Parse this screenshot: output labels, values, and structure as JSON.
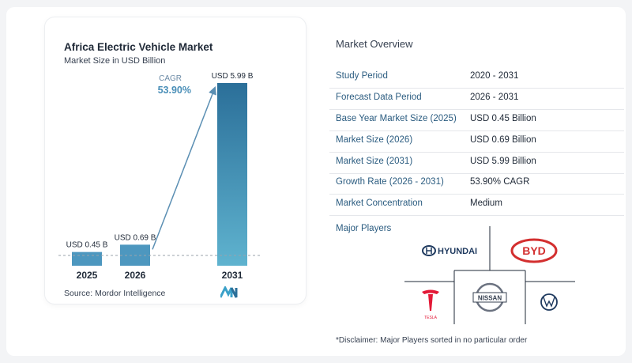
{
  "chart_data": {
    "type": "bar",
    "title": "Africa Electric Vehicle Market",
    "subtitle": "Market Size in USD Billion",
    "categories": [
      "2025",
      "2026",
      "2031"
    ],
    "values": [
      0.45,
      0.69,
      5.99
    ],
    "data_labels": [
      "USD 0.45 B",
      "USD 0.69 B",
      "USD 5.99 B"
    ],
    "cagr_label": "CAGR",
    "cagr_value": "53.90%",
    "ylim": [
      0,
      5.99
    ],
    "grid": false
  },
  "source": "Source:  Mordor Intelligence",
  "overview": {
    "title": "Market Overview",
    "rows": [
      {
        "label": "Study Period",
        "value": "2020 - 2031"
      },
      {
        "label": "Forecast Data Period",
        "value": "2026 - 2031"
      },
      {
        "label": "Base Year Market Size (2025)",
        "value": "USD 0.45 Billion"
      },
      {
        "label": "Market Size (2026)",
        "value": "USD 0.69 Billion"
      },
      {
        "label": "Market Size (2031)",
        "value": "USD 5.99 Billion"
      },
      {
        "label": "Growth Rate (2026 - 2031)",
        "value": "53.90% CAGR"
      },
      {
        "label": "Market Concentration",
        "value": "Medium"
      }
    ]
  },
  "players": {
    "title": "Major Players",
    "logos": [
      "HYUNDAI",
      "BYD",
      "TESLA",
      "NISSAN",
      "Volkswagen"
    ],
    "hyundai_text": "HYUNDAI",
    "byd_text": "BYD",
    "tesla_text": "TESLA",
    "nissan_text": "NISSAN"
  },
  "disclaimer": "*Disclaimer: Major Players sorted in no particular order",
  "colors": {
    "bar_light": "#5fb3cf",
    "bar_dark": "#2b6f99",
    "accent": "#4a8fb8",
    "label_blue": "#2b5c80"
  }
}
